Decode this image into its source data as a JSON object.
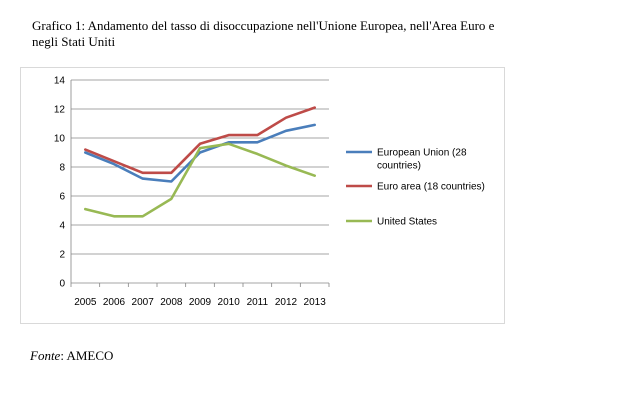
{
  "title": "Grafico 1: Andamento del tasso di disoccupazione nell'Unione Europea, nell'Area Euro e negli Stati Uniti",
  "source": {
    "label": "Fonte",
    "text": ": AMECO"
  },
  "chart_data": {
    "type": "line",
    "x": [
      "2005",
      "2006",
      "2007",
      "2008",
      "2009",
      "2010",
      "2011",
      "2012",
      "2013"
    ],
    "ylim": [
      0,
      14
    ],
    "yticks": [
      "0",
      "2",
      "4",
      "6",
      "8",
      "10",
      "12",
      "14"
    ],
    "grid": "horizontal",
    "legend_position": "right",
    "series": [
      {
        "name_lines": [
          "European Union (28",
          "countries)"
        ],
        "color": "#4a7ebb",
        "values": [
          9.0,
          8.2,
          7.2,
          7.0,
          9.0,
          9.7,
          9.7,
          10.5,
          10.9
        ]
      },
      {
        "name_lines": [
          "Euro area (18 countries)"
        ],
        "color": "#be4b48",
        "values": [
          9.2,
          8.4,
          7.6,
          7.6,
          9.6,
          10.2,
          10.2,
          11.4,
          12.1
        ]
      },
      {
        "name_lines": [
          "United States"
        ],
        "color": "#98b954",
        "values": [
          5.1,
          4.6,
          4.6,
          5.8,
          9.3,
          9.6,
          8.9,
          8.1,
          7.4
        ]
      }
    ]
  }
}
